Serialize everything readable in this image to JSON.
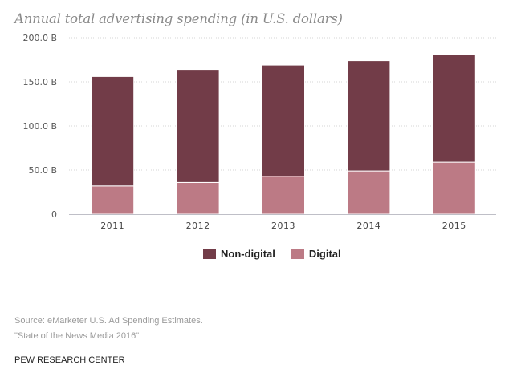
{
  "chart_data": {
    "type": "bar",
    "stacked": true,
    "title": "Annual total advertising spending (in U.S. dollars)",
    "xlabel": "",
    "ylabel": "",
    "categories": [
      "2011",
      "2012",
      "2013",
      "2014",
      "2015"
    ],
    "series": [
      {
        "name": "Digital",
        "color": "#bc7a85",
        "values": [
          32,
          36,
          43,
          49,
          59
        ]
      },
      {
        "name": "Non-digital",
        "color": "#723c48",
        "values": [
          124,
          128,
          126,
          125,
          122
        ]
      }
    ],
    "ylim": [
      0,
      200
    ],
    "yticks": [
      0,
      50,
      100,
      150,
      200
    ],
    "ytick_labels": [
      "0",
      "50.0 B",
      "100.0 B",
      "150.0 B",
      "200.0 B"
    ],
    "units": "billions of U.S. dollars",
    "grid": true,
    "legend": {
      "placement": "bottom-center",
      "entries": [
        {
          "label": "Non-digital",
          "color": "#723c48"
        },
        {
          "label": "Digital",
          "color": "#bc7a85"
        }
      ]
    }
  },
  "footer": {
    "source_line1": "Source: eMarketer U.S. Ad Spending Estimates.",
    "source_line2": "\"State of the News Media 2016\"",
    "organization": "PEW RESEARCH CENTER"
  }
}
